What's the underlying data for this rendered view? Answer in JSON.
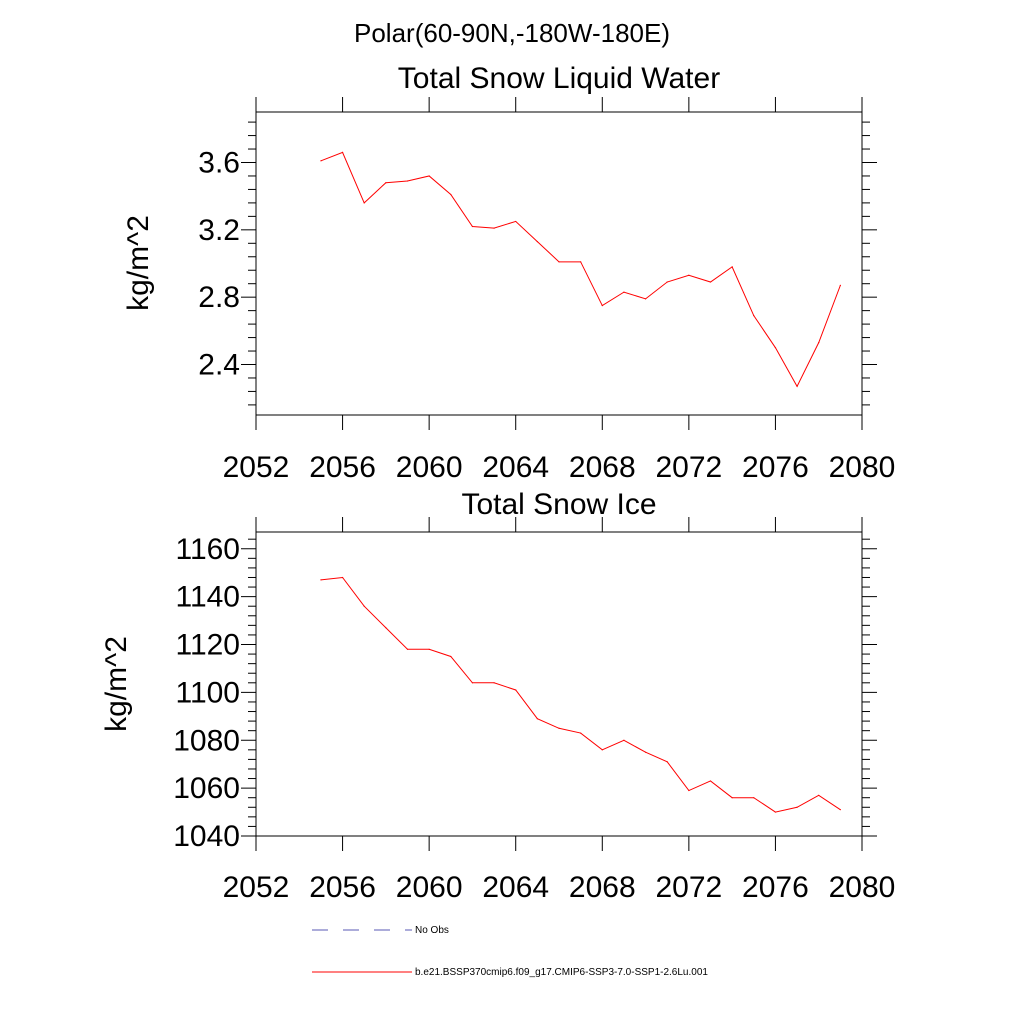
{
  "figure": {
    "suptitle": "Polar(60-90N,-180W-180E)"
  },
  "legend": {
    "entries": [
      {
        "label": "No Obs",
        "color": "#5a5ab4",
        "dash": true
      },
      {
        "label": "b.e21.BSSP370cmip6.f09_g17.CMIP6-SSP3-7.0-SSP1-2.6Lu.001",
        "color": "#ff0000",
        "dash": false
      }
    ]
  },
  "chart_data": [
    {
      "type": "line",
      "title": "Total Snow Liquid Water",
      "xlabel": "",
      "ylabel": "kg/m^2",
      "xlim": [
        2052,
        2080
      ],
      "ylim": [
        2.1,
        3.9
      ],
      "xticks": [
        2052,
        2056,
        2060,
        2064,
        2068,
        2072,
        2076,
        2080
      ],
      "xtick_labels": [
        "2052",
        "2056",
        "2060",
        "2064",
        "2068",
        "2072",
        "2076",
        "2080"
      ],
      "yticks": [
        2.4,
        2.8,
        3.2,
        3.6
      ],
      "ytick_labels": [
        "2.4",
        "2.8",
        "3.2",
        "3.6"
      ],
      "x": [
        2055,
        2056,
        2057,
        2058,
        2059,
        2060,
        2061,
        2062,
        2063,
        2064,
        2065,
        2066,
        2067,
        2068,
        2069,
        2070,
        2071,
        2072,
        2073,
        2074,
        2075,
        2076,
        2077,
        2078,
        2079
      ],
      "series": [
        {
          "color": "#ff0000",
          "values": [
            3.61,
            3.66,
            3.36,
            3.48,
            3.49,
            3.52,
            3.41,
            3.22,
            3.21,
            3.25,
            3.13,
            3.01,
            3.01,
            2.75,
            2.83,
            2.79,
            2.89,
            2.93,
            2.89,
            2.98,
            2.69,
            2.5,
            2.27,
            2.53,
            2.87
          ]
        }
      ]
    },
    {
      "type": "line",
      "title": "Total Snow Ice",
      "xlabel": "",
      "ylabel": "kg/m^2",
      "xlim": [
        2052,
        2080
      ],
      "ylim": [
        1040,
        1167
      ],
      "xticks": [
        2052,
        2056,
        2060,
        2064,
        2068,
        2072,
        2076,
        2080
      ],
      "xtick_labels": [
        "2052",
        "2056",
        "2060",
        "2064",
        "2068",
        "2072",
        "2076",
        "2080"
      ],
      "yticks": [
        1040,
        1060,
        1080,
        1100,
        1120,
        1140,
        1160
      ],
      "ytick_labels": [
        "1040",
        "1060",
        "1080",
        "1100",
        "1120",
        "1140",
        "1160"
      ],
      "x": [
        2055,
        2056,
        2057,
        2058,
        2059,
        2060,
        2061,
        2062,
        2063,
        2064,
        2065,
        2066,
        2067,
        2068,
        2069,
        2070,
        2071,
        2072,
        2073,
        2074,
        2075,
        2076,
        2077,
        2078,
        2079
      ],
      "series": [
        {
          "color": "#ff0000",
          "values": [
            1147,
            1148,
            1136,
            1127,
            1118,
            1118,
            1115,
            1104,
            1104,
            1101,
            1089,
            1085,
            1083,
            1076,
            1080,
            1075,
            1071,
            1059,
            1063,
            1056,
            1056,
            1050,
            1052,
            1057,
            1051
          ]
        }
      ]
    }
  ]
}
